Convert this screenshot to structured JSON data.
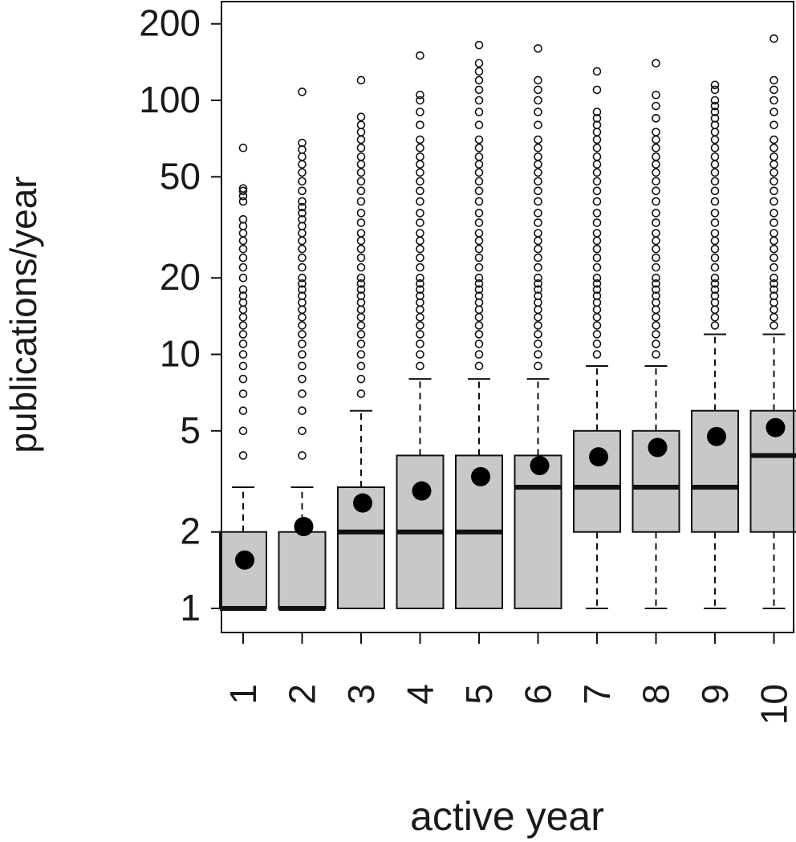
{
  "chart_data": {
    "type": "boxplot",
    "xlabel": "active year",
    "ylabel": "publications/year",
    "y_scale": "log",
    "ylim": [
      0.85,
      300
    ],
    "y_ticks": [
      1,
      2,
      5,
      10,
      20,
      50,
      100,
      200
    ],
    "categories": [
      "1",
      "2",
      "3",
      "4",
      "5",
      "6",
      "7",
      "8",
      "9",
      "10"
    ],
    "boxes": [
      {
        "category": "1",
        "whisker_low": 1,
        "q1": 1,
        "median": 1,
        "q3": 2,
        "whisker_high": 3,
        "mean": 1.55,
        "outliers": [
          4,
          5,
          6,
          7,
          8,
          9,
          10,
          11,
          12,
          13,
          14,
          15,
          16,
          17,
          18,
          20,
          22,
          24,
          26,
          28,
          30,
          32,
          34,
          40,
          42,
          44,
          45,
          65
        ]
      },
      {
        "category": "2",
        "whisker_low": 1,
        "q1": 1,
        "median": 1,
        "q3": 2,
        "whisker_high": 3,
        "mean": 2.1,
        "outliers": [
          4,
          5,
          6,
          7,
          8,
          9,
          10,
          11,
          12,
          13,
          14,
          15,
          16,
          17,
          18,
          19,
          20,
          22,
          24,
          26,
          28,
          30,
          32,
          34,
          36,
          38,
          40,
          44,
          48,
          52,
          56,
          60,
          64,
          68,
          108
        ]
      },
      {
        "category": "3",
        "whisker_low": 1,
        "q1": 1,
        "median": 2,
        "q3": 3,
        "whisker_high": 6,
        "mean": 2.6,
        "outliers": [
          7,
          8,
          9,
          10,
          11,
          12,
          13,
          14,
          15,
          16,
          17,
          18,
          19,
          20,
          22,
          24,
          26,
          28,
          30,
          33,
          36,
          40,
          44,
          48,
          52,
          56,
          60,
          65,
          70,
          75,
          80,
          86,
          120
        ]
      },
      {
        "category": "4",
        "whisker_low": 1,
        "q1": 1,
        "median": 2,
        "q3": 4,
        "whisker_high": 8,
        "mean": 2.9,
        "outliers": [
          9,
          10,
          11,
          12,
          13,
          14,
          15,
          16,
          17,
          18,
          19,
          20,
          22,
          24,
          26,
          28,
          30,
          33,
          36,
          40,
          44,
          48,
          52,
          56,
          60,
          65,
          70,
          80,
          90,
          100,
          105,
          150
        ]
      },
      {
        "category": "5",
        "whisker_low": 1,
        "q1": 1,
        "median": 2,
        "q3": 4,
        "whisker_high": 8,
        "mean": 3.3,
        "outliers": [
          9,
          10,
          11,
          12,
          13,
          14,
          15,
          16,
          17,
          18,
          19,
          20,
          22,
          24,
          26,
          28,
          30,
          33,
          36,
          40,
          44,
          48,
          52,
          56,
          60,
          65,
          70,
          80,
          90,
          100,
          110,
          120,
          130,
          140,
          165
        ]
      },
      {
        "category": "6",
        "whisker_low": 1,
        "q1": 1,
        "median": 3,
        "q3": 4,
        "whisker_high": 8,
        "mean": 3.65,
        "outliers": [
          9,
          10,
          11,
          12,
          13,
          14,
          15,
          16,
          17,
          18,
          19,
          20,
          22,
          24,
          26,
          28,
          30,
          33,
          36,
          40,
          44,
          48,
          52,
          56,
          60,
          65,
          70,
          80,
          90,
          100,
          110,
          120,
          160
        ]
      },
      {
        "category": "7",
        "whisker_low": 1,
        "q1": 2,
        "median": 3,
        "q3": 5,
        "whisker_high": 9,
        "mean": 3.95,
        "outliers": [
          10,
          11,
          12,
          13,
          14,
          15,
          16,
          17,
          18,
          19,
          20,
          22,
          24,
          26,
          28,
          30,
          33,
          36,
          40,
          44,
          48,
          52,
          56,
          60,
          65,
          70,
          75,
          80,
          85,
          90,
          110,
          130
        ]
      },
      {
        "category": "8",
        "whisker_low": 1,
        "q1": 2,
        "median": 3,
        "q3": 5,
        "whisker_high": 9,
        "mean": 4.3,
        "outliers": [
          10,
          11,
          12,
          13,
          14,
          15,
          16,
          17,
          18,
          19,
          20,
          22,
          24,
          26,
          28,
          30,
          33,
          36,
          40,
          44,
          48,
          52,
          56,
          60,
          65,
          70,
          75,
          85,
          95,
          105,
          140
        ]
      },
      {
        "category": "9",
        "whisker_low": 1,
        "q1": 2,
        "median": 3,
        "q3": 6,
        "whisker_high": 12,
        "mean": 4.75,
        "outliers": [
          13,
          14,
          15,
          16,
          17,
          18,
          19,
          20,
          22,
          24,
          26,
          28,
          30,
          33,
          36,
          40,
          44,
          48,
          52,
          56,
          60,
          65,
          70,
          75,
          80,
          85,
          90,
          95,
          100,
          110,
          115
        ]
      },
      {
        "category": "10",
        "whisker_low": 1,
        "q1": 2,
        "median": 4,
        "q3": 6,
        "whisker_high": 12,
        "mean": 5.15,
        "outliers": [
          13,
          14,
          15,
          16,
          17,
          18,
          19,
          20,
          22,
          24,
          26,
          28,
          30,
          33,
          36,
          40,
          44,
          48,
          52,
          56,
          60,
          65,
          70,
          80,
          90,
          100,
          110,
          120,
          175
        ]
      }
    ],
    "colors": {
      "box_fill": "#c8c8c8",
      "stroke": "#111111",
      "mean_marker": "#000000"
    },
    "grid": false,
    "legend": "none"
  }
}
